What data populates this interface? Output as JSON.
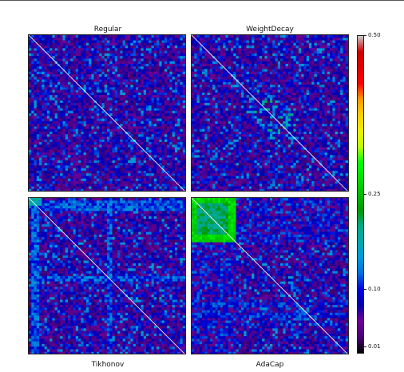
{
  "chart_data": {
    "type": "heatmap",
    "panels": [
      {
        "title": "Regular",
        "title_position": "top",
        "pattern": "diffuse-noise"
      },
      {
        "title": "WeightDecay",
        "title_position": "top",
        "pattern": "diffuse-noise-with-central-band"
      },
      {
        "title": "Tikhonov",
        "title_position": "bottom",
        "pattern": "noise-with-bright-stripes"
      },
      {
        "title": "AdaCap",
        "title_position": "bottom",
        "pattern": "bright-top-left-block-with-stripes"
      }
    ],
    "colorbar": {
      "colormap": "nipy_spectral",
      "min": 0.0,
      "max": 0.5,
      "ticks": [
        0.5,
        0.25,
        0.1,
        0.01
      ],
      "tick_labels": [
        "0.50",
        "0.25",
        "0.10",
        "0.01"
      ]
    },
    "diagonal_color": "#ffffff"
  }
}
